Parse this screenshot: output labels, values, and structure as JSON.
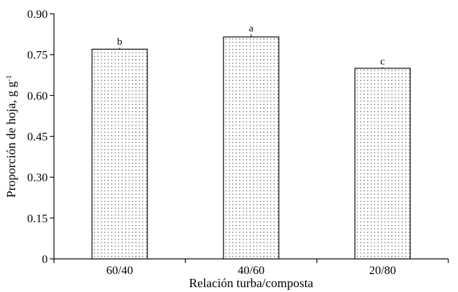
{
  "chart_data": {
    "type": "bar",
    "title": "",
    "xlabel": "Relación turba/composta",
    "ylabel_main": "Proporción de hoja, g g",
    "ylabel_sup": "-1",
    "categories": [
      "60/40",
      "40/60",
      "20/80"
    ],
    "values": [
      0.77,
      0.815,
      0.7
    ],
    "errors": [
      0.006,
      0.01,
      0.004
    ],
    "significance": [
      "b",
      "a",
      "c"
    ],
    "ylim": [
      0,
      0.9
    ],
    "yticks": [
      0,
      0.15,
      0.3,
      0.45,
      0.6,
      0.75,
      0.9
    ],
    "ytick_labels": [
      "0",
      "0.15",
      "0.30",
      "0.45",
      "0.60",
      "0.75",
      "0.90"
    ],
    "grid": false,
    "bar_fill": "dotted",
    "colors": {
      "bar_stroke": "#000000",
      "dot": "#555555",
      "background": "#ffffff"
    }
  }
}
